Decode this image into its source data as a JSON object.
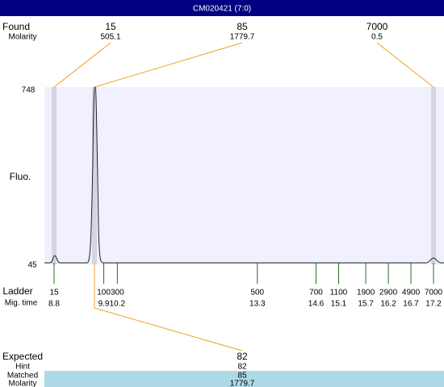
{
  "header": {
    "title": "CM020421 (7:0)"
  },
  "found": {
    "label": "Found",
    "molarity_label": "Molarity",
    "peaks": [
      {
        "size": "15",
        "molarity": "505.1"
      },
      {
        "size": "85",
        "molarity": "1779.7"
      },
      {
        "size": "7000",
        "molarity": "0.5"
      }
    ]
  },
  "plot": {
    "y_label": "Fluo.",
    "y_max": "748",
    "y_min": "45"
  },
  "ladder": {
    "label": "Ladder",
    "time_label": "Mig. time",
    "sizes": [
      "15",
      "100",
      "300",
      "500",
      "700",
      "1100",
      "1900",
      "2900",
      "4900",
      "7000"
    ],
    "times": [
      8.8,
      9.9,
      10.2,
      13.3,
      14.6,
      15.1,
      15.7,
      16.2,
      16.7,
      17.2
    ]
  },
  "expected": {
    "label": "Expected",
    "value": "82",
    "hint_label": "Hint",
    "hint": "82",
    "matched_label": "Matched",
    "matched": "85",
    "molarity_label": "Molarity",
    "molarity": "1779.7"
  }
}
